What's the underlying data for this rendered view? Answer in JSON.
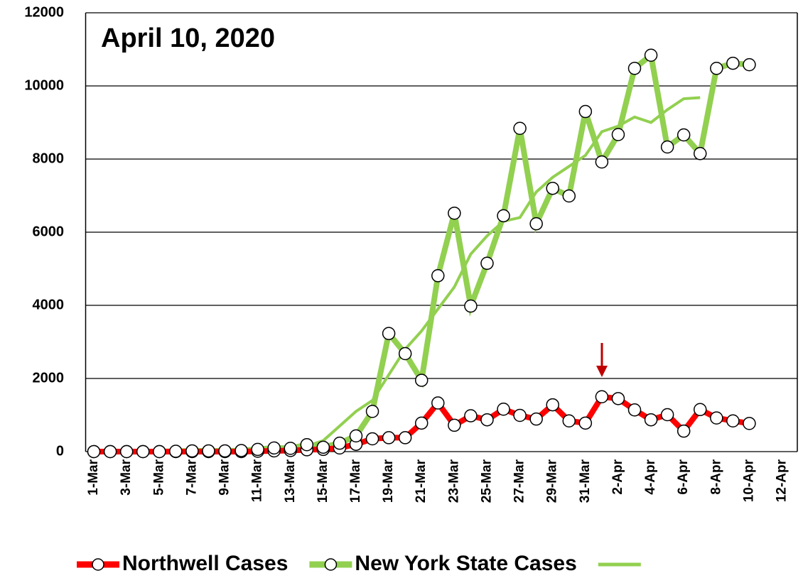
{
  "chart_data": {
    "type": "line",
    "annotation": "April 10, 2020",
    "categories": [
      "1-Mar",
      null,
      "3-Mar",
      null,
      "5-Mar",
      null,
      "7-Mar",
      null,
      "9-Mar",
      null,
      "11-Mar",
      null,
      "13-Mar",
      null,
      "15-Mar",
      null,
      "17-Mar",
      null,
      "19-Mar",
      null,
      "21-Mar",
      null,
      "23-Mar",
      null,
      "25-Mar",
      null,
      "27-Mar",
      null,
      "29-Mar",
      null,
      "31-Mar",
      null,
      "2-Apr",
      null,
      "4-Apr",
      null,
      "6-Apr",
      null,
      "8-Apr",
      null,
      "10-Apr",
      null,
      "12-Apr",
      null
    ],
    "series": [
      {
        "name": "Northwell Cases",
        "color": "#ff0000",
        "markers": true,
        "values": [
          0,
          0,
          0,
          0,
          0,
          0,
          0,
          0,
          0,
          0,
          10,
          20,
          30,
          50,
          60,
          100,
          200,
          350,
          380,
          380,
          780,
          1330,
          720,
          980,
          870,
          1160,
          990,
          890,
          1280,
          840,
          780,
          1500,
          1450,
          1140,
          870,
          1010,
          560,
          1150,
          920,
          840,
          770,
          null,
          null,
          null
        ]
      },
      {
        "name": "New York State Cases",
        "color": "#92d050",
        "markers": true,
        "values": [
          0,
          0,
          0,
          0,
          0,
          10,
          20,
          20,
          20,
          30,
          60,
          100,
          90,
          190,
          120,
          230,
          430,
          1100,
          3230,
          2680,
          1950,
          4810,
          6520,
          3980,
          5150,
          6450,
          8840,
          6230,
          7200,
          6990,
          9300,
          7920,
          8670,
          10480,
          10840,
          8330,
          8660,
          8150,
          10480,
          10620,
          10580,
          null,
          null,
          null
        ]
      },
      {
        "color": "#92d050",
        "markers": false,
        "values": [
          null,
          null,
          0,
          0,
          0,
          10,
          10,
          20,
          20,
          30,
          40,
          60,
          80,
          150,
          300,
          700,
          1100,
          1400,
          2100,
          2800,
          3300,
          3900,
          4500,
          5400,
          5900,
          6300,
          6400,
          7100,
          7500,
          7800,
          8100,
          8750,
          8900,
          9150,
          9000,
          9350,
          9650,
          9680,
          null,
          null,
          null,
          null,
          null,
          null
        ]
      }
    ],
    "ylim": [
      0,
      12000
    ],
    "yticks": [
      0,
      2000,
      4000,
      6000,
      8000,
      10000,
      12000
    ],
    "grid": true,
    "legend": "bottom"
  }
}
